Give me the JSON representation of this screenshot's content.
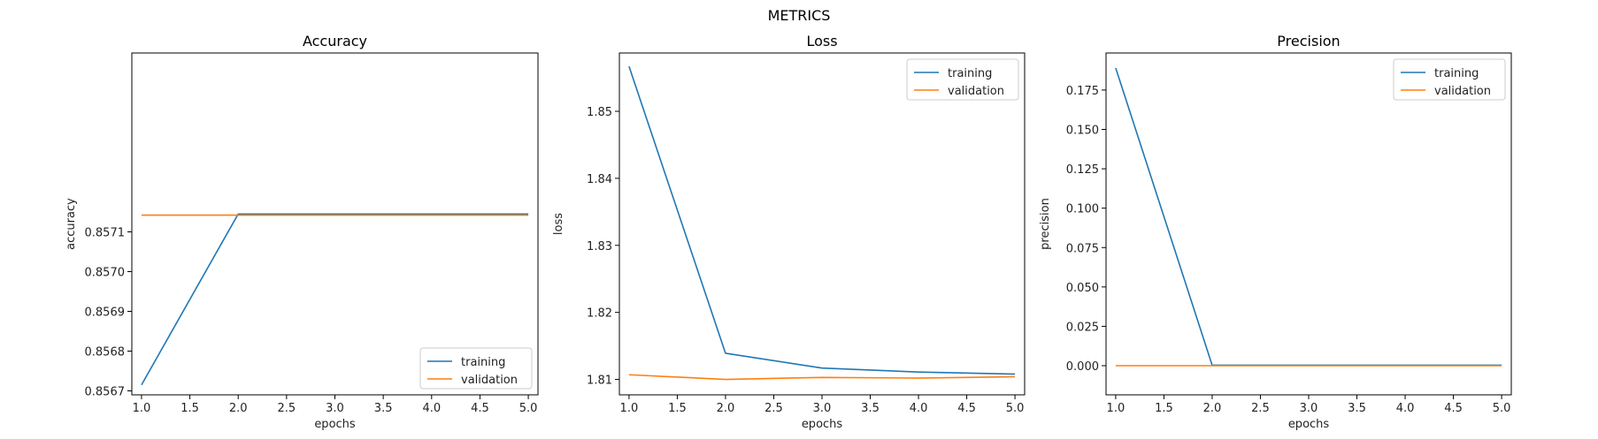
{
  "figure": {
    "title": "METRICS"
  },
  "colors": {
    "training": "#1f77b4",
    "validation": "#ff7f0e"
  },
  "chart_data": [
    {
      "type": "line",
      "title": "Accuracy",
      "xlabel": "epochs",
      "ylabel": "accuracy",
      "x": [
        1,
        2,
        3,
        4,
        5
      ],
      "xlim": [
        0.9,
        5.1
      ],
      "ylim": [
        0.85669,
        0.85755
      ],
      "xticks": [
        "1.0",
        "1.5",
        "2.0",
        "2.5",
        "3.0",
        "3.5",
        "4.0",
        "4.5",
        "5.0"
      ],
      "yticks": [
        "0.8567",
        "0.8568",
        "0.8569",
        "0.8570",
        "0.8571"
      ],
      "legend_position": "lower-right",
      "series": [
        {
          "name": "training",
          "values": [
            0.856715,
            0.857145,
            0.857145,
            0.857145,
            0.857145
          ]
        },
        {
          "name": "validation",
          "values": [
            0.857142,
            0.857142,
            0.857142,
            0.857142,
            0.857142
          ]
        }
      ]
    },
    {
      "type": "line",
      "title": "Loss",
      "xlabel": "epochs",
      "ylabel": "loss",
      "x": [
        1,
        2,
        3,
        4,
        5
      ],
      "xlim": [
        0.9,
        5.1
      ],
      "ylim": [
        1.8077,
        1.8587
      ],
      "xticks": [
        "1.0",
        "1.5",
        "2.0",
        "2.5",
        "3.0",
        "3.5",
        "4.0",
        "4.5",
        "5.0"
      ],
      "yticks": [
        "1.81",
        "1.82",
        "1.83",
        "1.84",
        "1.85"
      ],
      "legend_position": "upper-right",
      "series": [
        {
          "name": "training",
          "values": [
            1.8567,
            1.8139,
            1.8117,
            1.8111,
            1.8108
          ]
        },
        {
          "name": "validation",
          "values": [
            1.8107,
            1.81,
            1.8103,
            1.8102,
            1.8104
          ]
        }
      ]
    },
    {
      "type": "line",
      "title": "Precision",
      "xlabel": "epochs",
      "ylabel": "precision",
      "x": [
        1,
        2,
        3,
        4,
        5
      ],
      "xlim": [
        0.9,
        5.1
      ],
      "ylim": [
        -0.0185,
        0.1985
      ],
      "xticks": [
        "1.0",
        "1.5",
        "2.0",
        "2.5",
        "3.0",
        "3.5",
        "4.0",
        "4.5",
        "5.0"
      ],
      "yticks": [
        "0.000",
        "0.025",
        "0.050",
        "0.075",
        "0.100",
        "0.125",
        "0.150",
        "0.175"
      ],
      "legend_position": "upper-right",
      "series": [
        {
          "name": "training",
          "values": [
            0.189,
            0.0003,
            0.0003,
            0.0003,
            0.0003
          ]
        },
        {
          "name": "validation",
          "values": [
            0.0,
            0.0,
            0.0,
            0.0,
            0.0
          ]
        }
      ]
    }
  ]
}
